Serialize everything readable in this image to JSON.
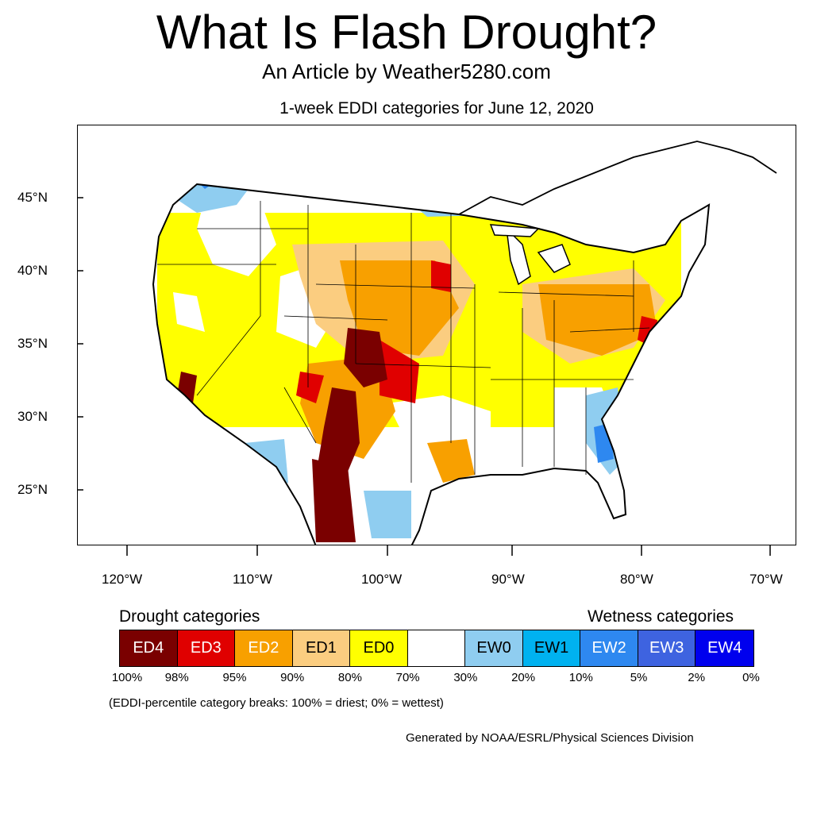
{
  "header": {
    "title": "What Is Flash Drought?",
    "subtitle": "An Article by Weather5280.com"
  },
  "map": {
    "title": "1-week EDDI categories for June 12, 2020",
    "region": "Contiguous United States",
    "lat_labels": [
      "45°N",
      "40°N",
      "35°N",
      "30°N",
      "25°N"
    ],
    "lon_labels": [
      "120°W",
      "110°W",
      "100°W",
      "90°W",
      "80°W",
      "70°W"
    ]
  },
  "legend": {
    "drought_heading": "Drought categories",
    "wetness_heading": "Wetness categories",
    "categories": [
      {
        "label": "ED4",
        "color": "#7a0000",
        "text_color": "#ffffff"
      },
      {
        "label": "ED3",
        "color": "#e00000",
        "text_color": "#ffffff"
      },
      {
        "label": "ED2",
        "color": "#f8a000",
        "text_color": "#ffffff"
      },
      {
        "label": "ED1",
        "color": "#fbcd80",
        "text_color": "#000000"
      },
      {
        "label": "ED0",
        "color": "#ffff00",
        "text_color": "#000000"
      },
      {
        "label": "",
        "color": "#ffffff",
        "text_color": "#000000"
      },
      {
        "label": "EW0",
        "color": "#8fcdf0",
        "text_color": "#000000"
      },
      {
        "label": "EW1",
        "color": "#00b2f0",
        "text_color": "#000000"
      },
      {
        "label": "EW2",
        "color": "#2e88f0",
        "text_color": "#ffffff"
      },
      {
        "label": "EW3",
        "color": "#3e63e0",
        "text_color": "#ffffff"
      },
      {
        "label": "EW4",
        "color": "#0000ee",
        "text_color": "#ffffff"
      }
    ],
    "breaks": [
      "100%",
      "98%",
      "95%",
      "90%",
      "80%",
      "70%",
      "30%",
      "20%",
      "10%",
      "5%",
      "2%",
      "0%"
    ],
    "note": "(EDDI-percentile category breaks: 100% = driest; 0% = wettest)"
  },
  "credit": "Generated by NOAA/ESRL/Physical Sciences Division"
}
